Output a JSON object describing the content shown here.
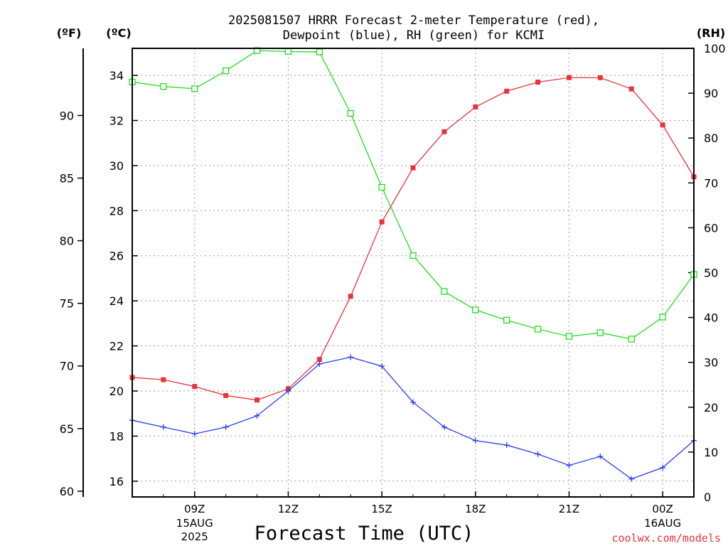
{
  "title_line1": "2025081507 HRRR Forecast 2-meter Temperature (red),",
  "title_line2": "Dewpoint (blue), RH (green) for KCMI",
  "unit_f": "(ºF)",
  "unit_c": "(ºC)",
  "unit_rh": "(RH)",
  "xlabel": "Forecast Time (UTC)",
  "credit": "coolwx.com/models",
  "chart_data": {
    "type": "line",
    "x_unit": "hours UTC, starting 07Z 15AUG 2025",
    "x": [
      "07Z",
      "08Z",
      "09Z",
      "10Z",
      "11Z",
      "12Z",
      "13Z",
      "14Z",
      "15Z",
      "16Z",
      "17Z",
      "18Z",
      "19Z",
      "20Z",
      "21Z",
      "22Z",
      "23Z",
      "00Z",
      "01Z"
    ],
    "x_range": [
      7,
      25
    ],
    "x_ticks": [
      {
        "label": "09Z",
        "date": "15AUG",
        "year": "2025",
        "x": 9
      },
      {
        "label": "12Z",
        "x": 12
      },
      {
        "label": "15Z",
        "x": 15
      },
      {
        "label": "18Z",
        "x": 18
      },
      {
        "label": "21Z",
        "x": 21
      },
      {
        "label": "00Z",
        "date": "16AUG",
        "x": 24
      }
    ],
    "y_celsius": {
      "range": [
        15.3,
        35.2
      ],
      "ticks": [
        16,
        18,
        20,
        22,
        24,
        26,
        28,
        30,
        32,
        34
      ]
    },
    "y_fahrenheit": {
      "ticks": [
        60,
        65,
        70,
        75,
        80,
        85,
        90
      ]
    },
    "y_rh": {
      "range": [
        0,
        100
      ],
      "ticks": [
        0,
        10,
        20,
        30,
        40,
        50,
        60,
        70,
        80,
        90,
        100
      ]
    },
    "grid": true,
    "series": [
      {
        "name": "Temperature (red)",
        "axis": "celsius",
        "color": "#e8343c",
        "marker": "filled-square",
        "values": [
          20.6,
          20.5,
          20.2,
          19.8,
          19.6,
          20.1,
          21.4,
          24.2,
          27.5,
          29.9,
          31.5,
          32.6,
          33.3,
          33.7,
          33.9,
          33.9,
          33.4,
          31.8,
          29.5
        ]
      },
      {
        "name": "Dewpoint (blue)",
        "axis": "celsius",
        "color": "#2b3bf0",
        "marker": "plus",
        "values": [
          18.7,
          18.4,
          18.1,
          18.4,
          18.9,
          20.0,
          21.2,
          21.5,
          21.1,
          19.5,
          18.4,
          17.8,
          17.6,
          17.2,
          16.7,
          17.1,
          16.1,
          16.6,
          17.8
        ]
      },
      {
        "name": "RH (green)",
        "axis": "rh",
        "color": "#22dd22",
        "marker": "open-square",
        "values": [
          92.5,
          91.5,
          91.0,
          95.0,
          99.5,
          99.3,
          99.2,
          85.5,
          69.0,
          53.8,
          45.8,
          41.7,
          39.4,
          37.4,
          35.8,
          36.6,
          35.2,
          40.1,
          49.6
        ]
      }
    ]
  }
}
